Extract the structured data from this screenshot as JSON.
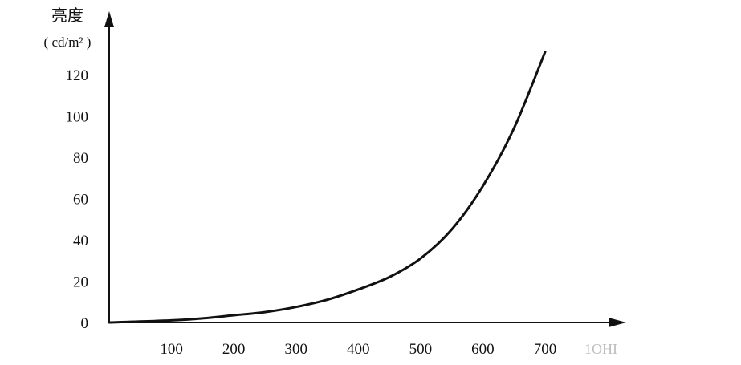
{
  "chart_data": {
    "type": "line",
    "title": "",
    "ylabel": "亮度",
    "yunit": "( cd/m² )",
    "xlabel": "",
    "x_ticks": [
      100,
      200,
      300,
      400,
      500,
      600,
      700
    ],
    "y_ticks": [
      0,
      20,
      40,
      60,
      80,
      100,
      120
    ],
    "xlim": [
      0,
      780
    ],
    "ylim": [
      0,
      130
    ],
    "trailing_label": "1OHI",
    "series": [
      {
        "x": [
          0,
          100,
          150,
          200,
          250,
          300,
          350,
          400,
          450,
          500,
          550,
          600,
          650,
          700
        ],
        "y": [
          0,
          1,
          2,
          3.5,
          5,
          7.5,
          11,
          16,
          22,
          31,
          45,
          66,
          94,
          131
        ]
      }
    ],
    "grid": false,
    "legend": "none",
    "line_color": "#111111"
  }
}
